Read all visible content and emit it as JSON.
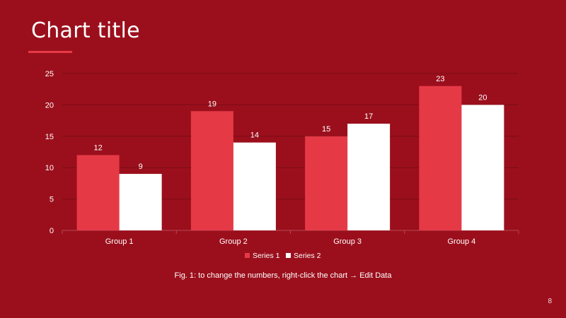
{
  "slide": {
    "title": "Chart title",
    "caption": "Fig. 1: to change the numbers, right-click the chart → Edit Data",
    "page_number": "8"
  },
  "colors": {
    "background": "#9b0f1c",
    "accent": "#e63946",
    "series1": "#e63946",
    "series2": "#ffffff",
    "gridline": "#7a0c16",
    "axis_text": "#ffffff"
  },
  "chart_data": {
    "type": "bar",
    "title": "Chart title",
    "xlabel": "",
    "ylabel": "",
    "categories": [
      "Group 1",
      "Group 2",
      "Group 3",
      "Group 4"
    ],
    "series": [
      {
        "name": "Series 1",
        "values": [
          12,
          19,
          15,
          23
        ]
      },
      {
        "name": "Series 2",
        "values": [
          9,
          14,
          17,
          20
        ]
      }
    ],
    "ylim": [
      0,
      25
    ],
    "yticks": [
      0,
      5,
      10,
      15,
      20,
      25
    ],
    "grid": true,
    "legend": "bottom-center",
    "data_labels": true
  }
}
